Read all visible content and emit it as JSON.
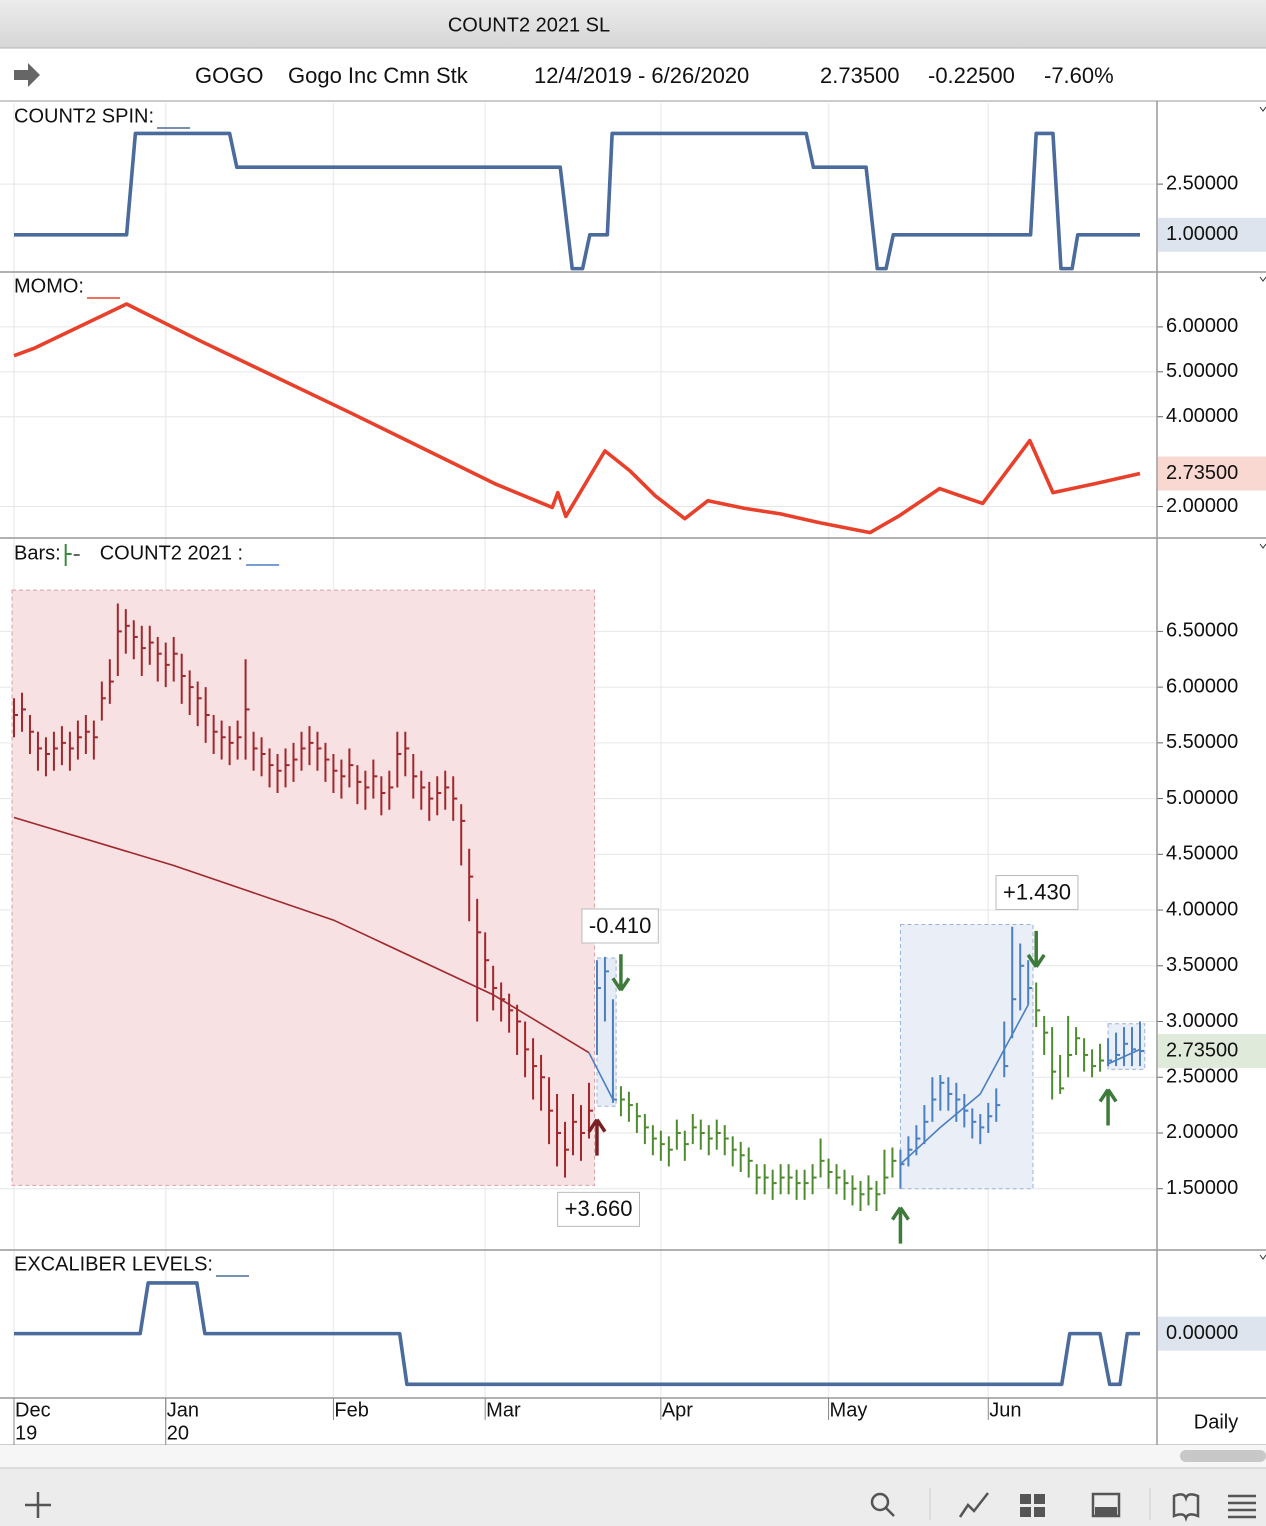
{
  "window_title": "COUNT2 2021 SL",
  "header": {
    "symbol": "GOGO",
    "name": "Gogo Inc Cmn Stk",
    "date_range": "12/4/2019 - 6/26/2020",
    "last": "2.73500",
    "change": "-0.22500",
    "change_pct": "-7.60%"
  },
  "x_axis": {
    "xlim": [
      0,
      141
    ],
    "xticks": [
      {
        "value": 0,
        "label": "Dec"
      },
      {
        "value": 19,
        "label": "Jan"
      },
      {
        "value": 40,
        "label": "Feb"
      },
      {
        "value": 59,
        "label": "Mar"
      },
      {
        "value": 81,
        "label": "Apr"
      },
      {
        "value": 102,
        "label": "May"
      },
      {
        "value": 122,
        "label": "Jun"
      }
    ],
    "year_ticks": [
      {
        "value": 0,
        "label": "19"
      },
      {
        "value": 19,
        "label": "20"
      }
    ],
    "period": "Daily"
  },
  "chart_data": [
    {
      "type": "line",
      "titles": [
        {
          "text": "COUNT2 SPIN:",
          "color": "#4a6b9c",
          "sample": "line"
        }
      ],
      "ylim": [
        -0.1,
        4.9
      ],
      "yticks": [
        {
          "value": 2.5,
          "label": "2.50000"
        }
      ],
      "last": {
        "value": 1,
        "label": "1.00000",
        "color": "#dde4ee"
      },
      "series": [
        {
          "color": "#4a6b9c",
          "x": [
            0,
            14.1,
            15.2,
            27,
            27.9,
            68.4,
            69.9,
            71.2,
            72.1,
            74.3,
            74.9,
            99.2,
            100.1,
            106.7,
            108.1,
            109.2,
            110.1,
            127.3,
            128,
            130.1,
            131.1,
            132.5,
            133.2,
            141
          ],
          "values": [
            1,
            1,
            4,
            4,
            3,
            3,
            0,
            0,
            1,
            1,
            4,
            4,
            3,
            3,
            0,
            0,
            1,
            1,
            4,
            4,
            0,
            0,
            1,
            1
          ]
        }
      ]
    },
    {
      "type": "line",
      "titles": [
        {
          "text": "MOMO:",
          "color": "#e8402a",
          "sample": "line"
        }
      ],
      "ylim": [
        1.3,
        7.2
      ],
      "yticks": [
        {
          "value": 2,
          "label": "2.00000"
        },
        {
          "value": 4,
          "label": "4.00000"
        },
        {
          "value": 5,
          "label": "5.00000"
        },
        {
          "value": 6,
          "label": "6.00000"
        }
      ],
      "last": {
        "value": 2.735,
        "label": "2.73500",
        "color": "#f8d8d0"
      },
      "series": [
        {
          "color": "#e8402a",
          "x": [
            0,
            2.6,
            14.1,
            23.3,
            42.1,
            60.2,
            67.4,
            68.1,
            69.1,
            74,
            77.1,
            80.3,
            84,
            86.9,
            91.5,
            95.9,
            100.9,
            107.2,
            110.9,
            115.9,
            118.5,
            121.3,
            127.2,
            130.1,
            135.4,
            141
          ],
          "values": [
            5.36,
            5.53,
            6.51,
            5.69,
            4.09,
            2.51,
            1.98,
            2.31,
            1.78,
            3.24,
            2.8,
            2.24,
            1.73,
            2.13,
            1.96,
            1.84,
            1.64,
            1.42,
            1.8,
            2.4,
            2.24,
            2.07,
            3.47,
            2.31,
            2.51,
            2.735
          ]
        }
      ]
    },
    {
      "type": "ohlc",
      "titles": [
        {
          "text": "Bars:",
          "color": "#3a8a3a",
          "sample": "bar"
        },
        {
          "text": "COUNT2 2021 :",
          "color": "#4a7fc0",
          "sample": "line"
        }
      ],
      "ylim": [
        0.95,
        7.32
      ],
      "yticks": [
        {
          "value": 1.5,
          "label": "1.50000"
        },
        {
          "value": 2,
          "label": "2.00000"
        },
        {
          "value": 2.5,
          "label": "2.50000"
        },
        {
          "value": 3,
          "label": "3.00000"
        },
        {
          "value": 3.5,
          "label": "3.50000"
        },
        {
          "value": 4,
          "label": "4.00000"
        },
        {
          "value": 4.5,
          "label": "4.50000"
        },
        {
          "value": 5,
          "label": "5.00000"
        },
        {
          "value": 5.5,
          "label": "5.50000"
        },
        {
          "value": 6,
          "label": "6.00000"
        },
        {
          "value": 6.5,
          "label": "6.50000"
        }
      ],
      "last": {
        "value": 2.735,
        "label": "2.73500",
        "color": "#dfeadb"
      },
      "close": [
        5.75,
        5.8,
        5.6,
        5.45,
        5.4,
        5.45,
        5.5,
        5.45,
        5.55,
        5.6,
        5.55,
        5.9,
        6.05,
        6.5,
        6.55,
        6.45,
        6.35,
        6.4,
        6.3,
        6.2,
        6.3,
        6.1,
        6.0,
        5.9,
        5.75,
        5.6,
        5.55,
        5.5,
        5.55,
        5.8,
        5.45,
        5.4,
        5.3,
        5.25,
        5.3,
        5.35,
        5.45,
        5.5,
        5.45,
        5.35,
        5.25,
        5.2,
        5.3,
        5.15,
        5.1,
        5.2,
        5.05,
        5.1,
        5.4,
        5.45,
        5.2,
        5.1,
        5.0,
        5.05,
        5.1,
        5.0,
        4.8,
        4.3,
        3.8,
        3.55,
        3.3,
        3.2,
        3.1,
        3.0,
        2.75,
        2.6,
        2.5,
        2.2,
        2.0,
        1.85,
        2.1,
        2.0,
        2.2,
        3.3,
        3.45,
        2.3,
        2.3,
        2.25,
        2.15,
        2.05,
        1.95,
        1.9,
        1.85,
        2.0,
        1.9,
        2.05,
        2.0,
        1.95,
        2.0,
        1.95,
        1.85,
        1.8,
        1.75,
        1.6,
        1.6,
        1.55,
        1.6,
        1.6,
        1.55,
        1.55,
        1.6,
        1.75,
        1.65,
        1.6,
        1.55,
        1.5,
        1.45,
        1.5,
        1.45,
        1.6,
        1.75,
        1.72,
        1.85,
        1.95,
        2.1,
        2.3,
        2.45,
        2.35,
        2.3,
        2.2,
        2.1,
        2.05,
        2.15,
        2.25,
        2.6,
        3.2,
        3.5,
        3.3,
        3.1,
        2.9,
        2.55,
        2.4,
        2.7,
        2.85,
        2.7,
        2.6,
        2.65,
        2.65,
        2.7,
        2.8,
        2.75,
        2.735
      ],
      "high": [
        5.9,
        5.95,
        5.75,
        5.6,
        5.55,
        5.6,
        5.65,
        5.6,
        5.7,
        5.75,
        5.7,
        6.05,
        6.25,
        6.75,
        6.7,
        6.6,
        6.55,
        6.55,
        6.45,
        6.4,
        6.45,
        6.3,
        6.15,
        6.05,
        6.0,
        5.75,
        5.7,
        5.65,
        5.7,
        6.25,
        5.6,
        5.55,
        5.45,
        5.4,
        5.45,
        5.5,
        5.6,
        5.65,
        5.6,
        5.5,
        5.4,
        5.35,
        5.45,
        5.3,
        5.25,
        5.35,
        5.2,
        5.25,
        5.6,
        5.6,
        5.4,
        5.25,
        5.15,
        5.2,
        5.25,
        5.2,
        4.95,
        4.55,
        4.1,
        3.8,
        3.5,
        3.35,
        3.25,
        3.15,
        3.0,
        2.85,
        2.7,
        2.5,
        2.35,
        2.1,
        2.35,
        2.25,
        2.45,
        3.55,
        3.58,
        3.2,
        2.42,
        2.37,
        2.27,
        2.17,
        2.07,
        2.02,
        1.97,
        2.12,
        2.02,
        2.17,
        2.12,
        2.07,
        2.12,
        2.07,
        1.97,
        1.92,
        1.87,
        1.72,
        1.72,
        1.67,
        1.72,
        1.72,
        1.67,
        1.67,
        1.72,
        1.95,
        1.77,
        1.72,
        1.67,
        1.62,
        1.57,
        1.62,
        1.57,
        1.85,
        1.87,
        1.85,
        1.97,
        2.07,
        2.25,
        2.5,
        2.52,
        2.5,
        2.45,
        2.35,
        2.22,
        2.17,
        2.27,
        2.4,
        3.0,
        3.85,
        3.7,
        3.55,
        3.35,
        3.05,
        2.95,
        2.7,
        3.05,
        2.95,
        2.85,
        2.75,
        2.8,
        2.85,
        2.9,
        2.95,
        2.95,
        3.0
      ],
      "low": [
        5.55,
        5.6,
        5.4,
        5.25,
        5.2,
        5.25,
        5.3,
        5.25,
        5.35,
        5.4,
        5.35,
        5.7,
        5.85,
        6.1,
        6.3,
        6.25,
        6.1,
        6.2,
        6.05,
        6.0,
        6.05,
        5.85,
        5.75,
        5.65,
        5.5,
        5.4,
        5.35,
        5.3,
        5.35,
        5.35,
        5.25,
        5.2,
        5.1,
        5.05,
        5.1,
        5.15,
        5.25,
        5.3,
        5.25,
        5.15,
        5.05,
        5.0,
        5.1,
        4.95,
        4.9,
        5.0,
        4.85,
        4.9,
        5.1,
        5.2,
        5.0,
        4.9,
        4.8,
        4.85,
        4.9,
        4.8,
        4.4,
        3.9,
        3.0,
        3.3,
        3.1,
        3.0,
        2.9,
        2.7,
        2.5,
        2.3,
        2.2,
        1.9,
        1.7,
        1.6,
        1.8,
        1.75,
        1.95,
        2.7,
        3.0,
        2.27,
        2.15,
        2.1,
        2.0,
        1.9,
        1.8,
        1.75,
        1.7,
        1.85,
        1.75,
        1.9,
        1.85,
        1.8,
        1.85,
        1.8,
        1.7,
        1.65,
        1.6,
        1.45,
        1.45,
        1.4,
        1.45,
        1.45,
        1.4,
        1.4,
        1.45,
        1.6,
        1.5,
        1.45,
        1.4,
        1.35,
        1.3,
        1.35,
        1.3,
        1.45,
        1.6,
        1.5,
        1.7,
        1.8,
        1.9,
        2.1,
        2.2,
        2.2,
        2.1,
        2.05,
        1.95,
        1.9,
        2.0,
        2.1,
        2.5,
        2.85,
        3.1,
        3.15,
        2.95,
        2.7,
        2.3,
        2.35,
        2.5,
        2.7,
        2.55,
        2.5,
        2.55,
        2.6,
        2.6,
        2.6,
        2.6,
        2.6
      ],
      "segments": [
        {
          "from": 0,
          "to": 72,
          "color": "#a0282d"
        },
        {
          "from": 73,
          "to": 75,
          "color": "#4a7fc0"
        },
        {
          "from": 76,
          "to": 110,
          "color": "#4e8a2e"
        },
        {
          "from": 111,
          "to": 127,
          "color": "#4a7fc0"
        },
        {
          "from": 128,
          "to": 136,
          "color": "#4e8a2e"
        },
        {
          "from": 137,
          "to": 141,
          "color": "#4a7fc0"
        }
      ],
      "boxes": [
        {
          "x": [
            -0.25,
            72.7
          ],
          "y": [
            1.53,
            6.87
          ],
          "fill": "#f7e1e2",
          "stroke": "#d9a0a5",
          "label": "+3.660",
          "label_color": "#8a1f24",
          "label_at": "bottom"
        },
        {
          "x": [
            73,
            75.4
          ],
          "y": [
            2.24,
            3.57
          ],
          "fill": "#e6ecf6",
          "stroke": "#9db3d6",
          "label": "-0.410",
          "label_color": "#3a8a3a",
          "label_at": "top"
        },
        {
          "x": [
            111,
            127.6
          ],
          "y": [
            1.5,
            3.87
          ],
          "fill": "#e9eef7",
          "stroke": "#9db3d6",
          "label": "+1.430",
          "label_color": "#3a8a3a",
          "label_at": "top"
        },
        {
          "x": [
            137,
            141.6
          ],
          "y": [
            2.57,
            2.98
          ],
          "fill": "#e9eef7",
          "stroke": "#9db3d6"
        }
      ],
      "series": [
        {
          "color": "#a0282d",
          "x": [
            0,
            20,
            40,
            60,
            72
          ],
          "values": [
            4.83,
            4.4,
            3.91,
            3.24,
            2.72
          ]
        },
        {
          "color": "#4a7fc0",
          "x": [
            72,
            75,
            90,
            111,
            116,
            121,
            127,
            132,
            137,
            141
          ],
          "values": [
            2.72,
            2.3,
            null,
            1.72,
            2.05,
            2.35,
            3.15,
            null,
            2.62,
            2.75
          ]
        }
      ],
      "signals": [
        {
          "x": 73,
          "y": 2.12,
          "direction": "up",
          "color": "#7a1f24"
        },
        {
          "x": 76,
          "y": 3.28,
          "direction": "down",
          "color": "#3e7a3a"
        },
        {
          "x": 111,
          "y": 1.33,
          "direction": "up",
          "color": "#3e7a3a"
        },
        {
          "x": 128,
          "y": 3.49,
          "direction": "down",
          "color": "#3e7a3a"
        },
        {
          "x": 137,
          "y": 2.39,
          "direction": "up",
          "color": "#3e7a3a"
        }
      ]
    },
    {
      "type": "line",
      "titles": [
        {
          "text": "EXCALIBER LEVELS:",
          "color": "#4a6b9c",
          "sample": "line"
        }
      ],
      "ylim": [
        -1.27,
        1.63
      ],
      "yticks": [],
      "last": {
        "value": 0,
        "label": "0.00000",
        "color": "#dde4ee"
      },
      "series": [
        {
          "color": "#4a6b9c",
          "x": [
            0,
            15.8,
            16.8,
            22.9,
            23.9,
            48.3,
            49.2,
            131.2,
            132.2,
            136,
            137.2,
            138.5,
            139.4,
            141
          ],
          "values": [
            0,
            0,
            1,
            1,
            0,
            0,
            -1,
            -1,
            0,
            0,
            -1,
            -1,
            0,
            0
          ]
        }
      ]
    }
  ]
}
